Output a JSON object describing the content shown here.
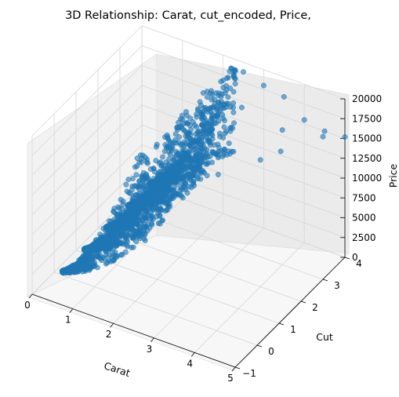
{
  "chart_data": {
    "type": "scatter",
    "projection": "3d",
    "title": "3D Relationship: Carat, cut_encoded, Price,",
    "xlabel": "Carat",
    "ylabel": "Cut",
    "zlabel": "Price",
    "xlim": [
      0,
      5
    ],
    "ylim": [
      -1,
      4
    ],
    "zlim": [
      0,
      20000
    ],
    "x_ticks": [
      "0",
      "1",
      "2",
      "3",
      "4",
      "5"
    ],
    "y_ticks": [
      "−1",
      "0",
      "1",
      "2",
      "3",
      "4"
    ],
    "z_ticks": [
      "0",
      "2500",
      "5000",
      "7500",
      "10000",
      "12500",
      "15000",
      "17500",
      "20000"
    ],
    "grid": true,
    "marker_color": "#1f77b4",
    "cut_levels": [
      0,
      1,
      2,
      3,
      4
    ],
    "series": [
      {
        "points": [
          [
            0.23,
            0,
            330
          ],
          [
            0.3,
            0,
            500
          ],
          [
            0.4,
            0,
            900
          ],
          [
            0.5,
            0,
            1500
          ],
          [
            0.6,
            0,
            1900
          ],
          [
            0.7,
            0,
            2500
          ],
          [
            0.8,
            0,
            3000
          ],
          [
            0.9,
            0,
            3600
          ],
          [
            1.0,
            0,
            4600
          ],
          [
            1.1,
            0,
            5200
          ],
          [
            1.2,
            0,
            6000
          ],
          [
            1.3,
            0,
            7000
          ],
          [
            1.5,
            0,
            8200
          ],
          [
            1.7,
            0,
            9500
          ],
          [
            2.0,
            0,
            11000
          ],
          [
            2.2,
            0,
            12500
          ],
          [
            2.5,
            0,
            14000
          ],
          [
            3.0,
            0,
            15500
          ],
          [
            0.3,
            1,
            550
          ],
          [
            0.5,
            1,
            1600
          ],
          [
            0.7,
            1,
            2700
          ],
          [
            0.9,
            1,
            3900
          ],
          [
            1.0,
            1,
            5000
          ],
          [
            1.2,
            1,
            6400
          ],
          [
            1.5,
            1,
            8800
          ],
          [
            1.8,
            1,
            10500
          ],
          [
            2.0,
            1,
            12800
          ],
          [
            2.4,
            1,
            14800
          ],
          [
            3.0,
            1,
            16500
          ],
          [
            3.5,
            1,
            16000
          ],
          [
            0.3,
            2,
            600
          ],
          [
            0.5,
            2,
            1800
          ],
          [
            0.7,
            2,
            2900
          ],
          [
            1.0,
            2,
            5400
          ],
          [
            1.3,
            2,
            8000
          ],
          [
            1.5,
            2,
            9800
          ],
          [
            2.0,
            2,
            14500
          ],
          [
            2.5,
            2,
            16500
          ],
          [
            3.0,
            2,
            17500
          ],
          [
            4.0,
            2,
            16000
          ],
          [
            4.5,
            2,
            18000
          ],
          [
            0.3,
            3,
            650
          ],
          [
            0.5,
            3,
            2000
          ],
          [
            0.8,
            3,
            3800
          ],
          [
            1.0,
            3,
            5800
          ],
          [
            1.2,
            3,
            7500
          ],
          [
            1.5,
            3,
            10500
          ],
          [
            2.0,
            3,
            15500
          ],
          [
            2.5,
            3,
            17800
          ],
          [
            3.0,
            3,
            18000
          ],
          [
            4.0,
            3,
            17000
          ],
          [
            5.0,
            3,
            18000
          ],
          [
            0.3,
            4,
            700
          ],
          [
            0.5,
            4,
            2200
          ],
          [
            0.7,
            4,
            3300
          ],
          [
            1.0,
            4,
            6200
          ],
          [
            1.2,
            4,
            8500
          ],
          [
            1.5,
            4,
            11500
          ],
          [
            1.8,
            4,
            13500
          ],
          [
            2.0,
            4,
            16800
          ],
          [
            2.3,
            4,
            18500
          ],
          [
            2.5,
            4,
            18800
          ],
          [
            3.0,
            4,
            18000
          ],
          [
            3.5,
            4,
            17500
          ],
          [
            4.0,
            4,
            15500
          ],
          [
            4.5,
            4,
            15000
          ],
          [
            5.0,
            4,
            15200
          ]
        ]
      }
    ]
  }
}
